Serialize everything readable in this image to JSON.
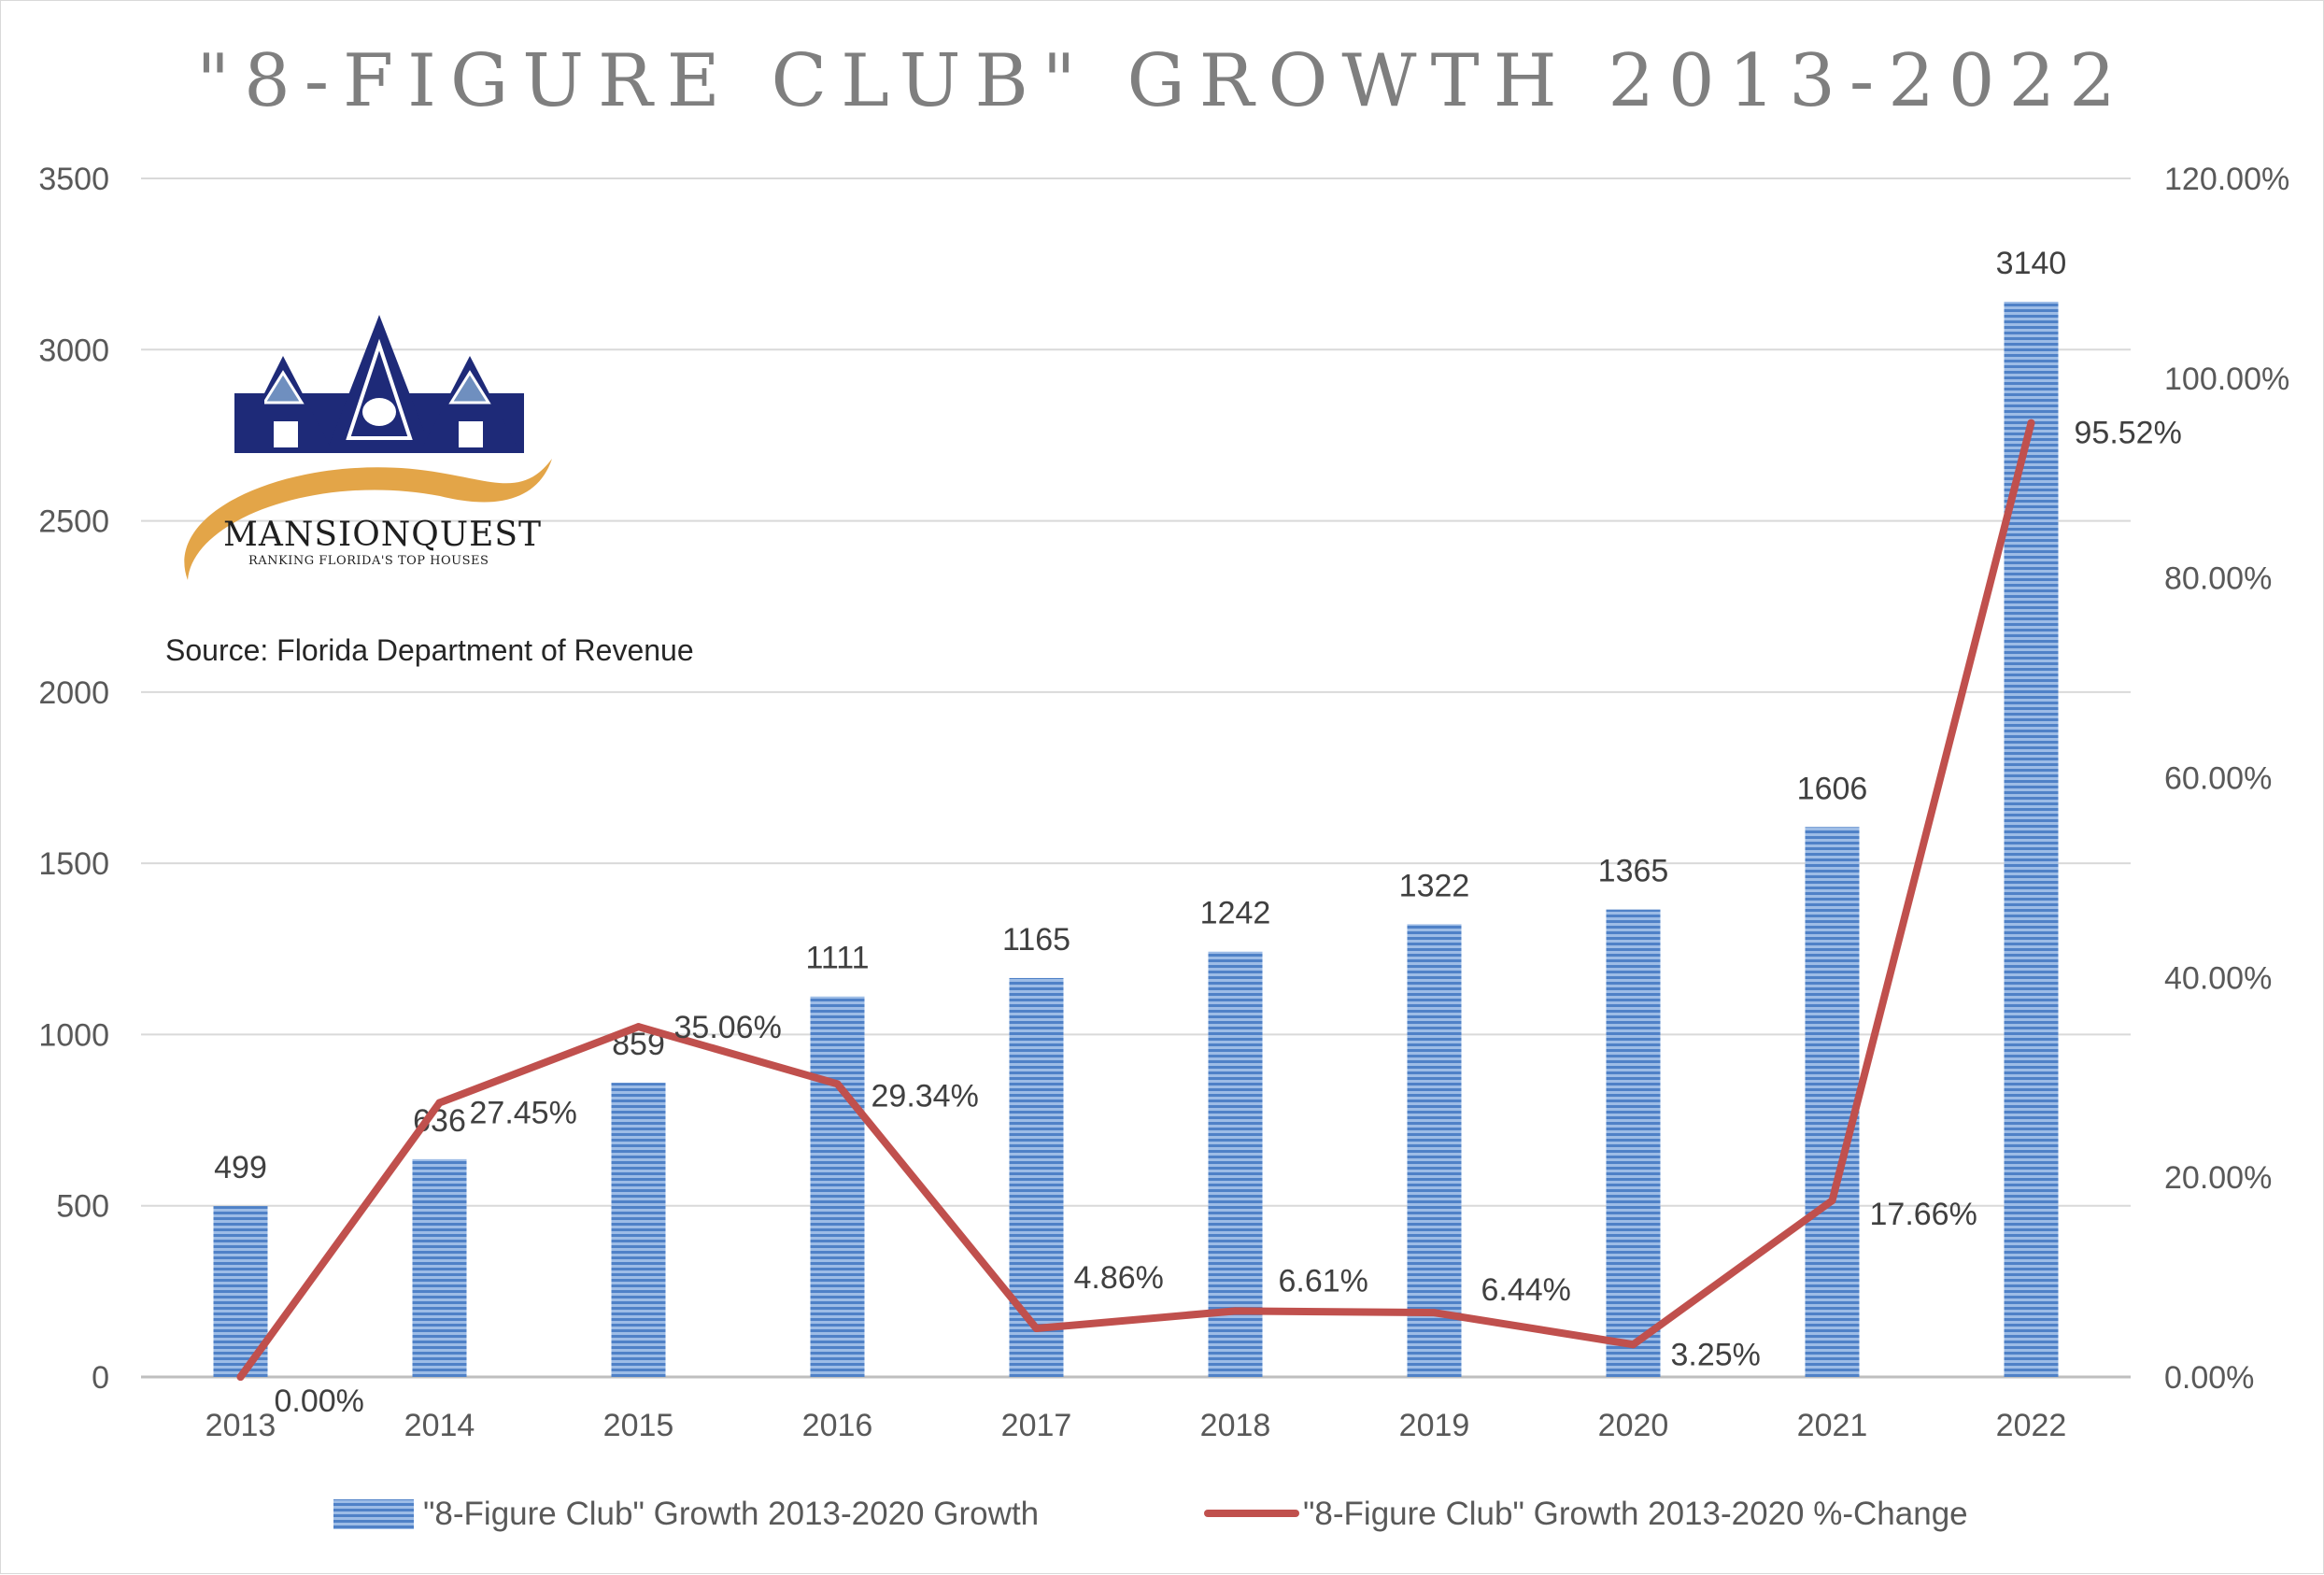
{
  "chart_data": {
    "type": "bar",
    "title": "\"8-FIGURE CLUB\" GROWTH 2013-2022",
    "categories": [
      "2013",
      "2014",
      "2015",
      "2016",
      "2017",
      "2018",
      "2019",
      "2020",
      "2021",
      "2022"
    ],
    "series": [
      {
        "name": "\"8-Figure Club\" Growth 2013-2020 Growth",
        "type": "bar",
        "axis": "left",
        "color": "#5b8fd1",
        "values": [
          499,
          636,
          859,
          1111,
          1165,
          1242,
          1322,
          1365,
          1606,
          3140
        ],
        "labels": [
          "499",
          "636",
          "859",
          "1111",
          "1165",
          "1242",
          "1322",
          "1365",
          "1606",
          "3140"
        ]
      },
      {
        "name": "\"8-Figure Club\" Growth 2013-2020 %-Change",
        "type": "line",
        "axis": "right",
        "color": "#c0504d",
        "values": [
          0.0,
          27.45,
          35.06,
          29.34,
          4.86,
          6.61,
          6.44,
          3.25,
          17.66,
          95.52
        ],
        "labels": [
          "0.00%",
          "27.45%",
          "35.06%",
          "29.34%",
          "4.86%",
          "6.61%",
          "6.44%",
          "3.25%",
          "17.66%",
          "95.52%"
        ]
      }
    ],
    "y_left": {
      "ylim": [
        0,
        3500
      ],
      "ticks": [
        "0",
        "500",
        "1000",
        "1500",
        "2000",
        "2500",
        "3000",
        "3500"
      ]
    },
    "y_right": {
      "ylim": [
        0,
        120
      ],
      "ticks": [
        "0.00%",
        "20.00%",
        "40.00%",
        "60.00%",
        "80.00%",
        "100.00%",
        "120.00%"
      ]
    },
    "grid": true,
    "legend_position": "bottom",
    "annotations": {
      "source": "Source: Florida Department of Revenue",
      "logo_name": "MANSIONQUEST",
      "logo_tagline": "RANKING FLORIDA'S TOP HOUSES"
    }
  }
}
